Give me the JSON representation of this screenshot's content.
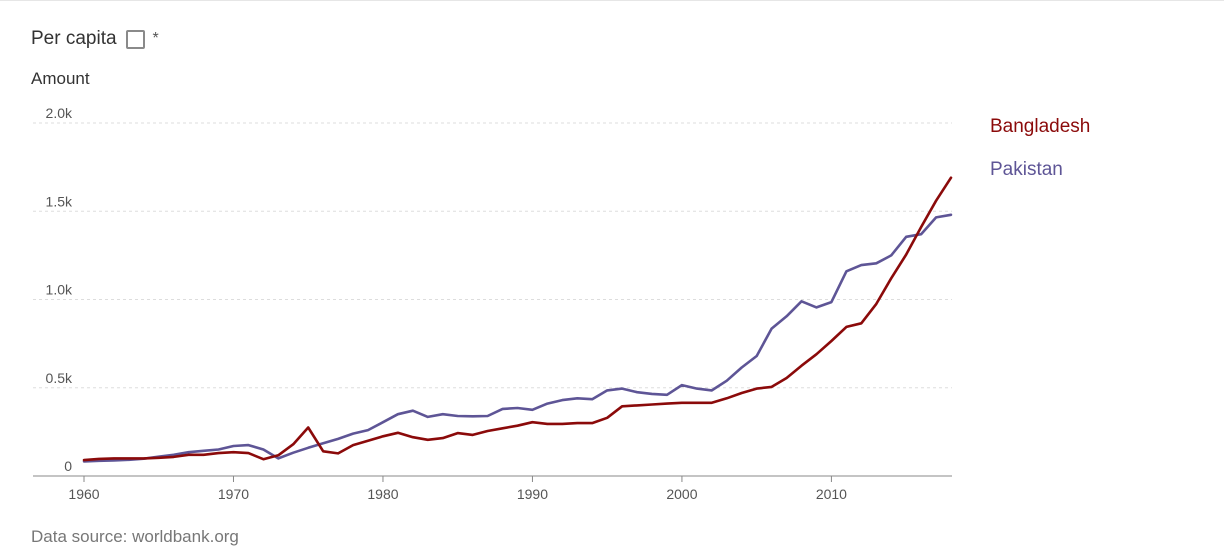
{
  "controls": {
    "per_capita_label": "Per capita",
    "per_capita_checked": false,
    "asterisk": "*"
  },
  "source_label": "Data source: worldbank.org",
  "colors": {
    "bangladesh": "#8b0a0a",
    "pakistan": "#5e5596",
    "grid": "#dddddd",
    "axis": "#888888"
  },
  "chart_data": {
    "type": "line",
    "title": "",
    "ylabel": "Amount",
    "xlabel": "",
    "xlim": [
      1960,
      2018
    ],
    "ylim": [
      0,
      2000
    ],
    "x_ticks": [
      1960,
      1970,
      1980,
      1990,
      2000,
      2010
    ],
    "y_ticks": [
      0,
      500,
      1000,
      1500,
      2000
    ],
    "y_tick_labels": [
      "0",
      "0.5k",
      "1.0k",
      "1.5k",
      "2.0k"
    ],
    "grid": "horizontal dashed",
    "legend_placement": "right",
    "x": [
      1960,
      1961,
      1962,
      1963,
      1964,
      1965,
      1966,
      1967,
      1968,
      1969,
      1970,
      1971,
      1972,
      1973,
      1974,
      1975,
      1976,
      1977,
      1978,
      1979,
      1980,
      1981,
      1982,
      1983,
      1984,
      1985,
      1986,
      1987,
      1988,
      1989,
      1990,
      1991,
      1992,
      1993,
      1994,
      1995,
      1996,
      1997,
      1998,
      1999,
      2000,
      2001,
      2002,
      2003,
      2004,
      2005,
      2006,
      2007,
      2008,
      2009,
      2010,
      2011,
      2012,
      2013,
      2014,
      2015,
      2016,
      2017,
      2018
    ],
    "series": [
      {
        "name": "Bangladesh",
        "color": "#8b0a0a",
        "values": [
          90,
          97,
          100,
          100,
          100,
          103,
          108,
          120,
          120,
          130,
          135,
          130,
          95,
          117,
          180,
          275,
          140,
          128,
          175,
          200,
          225,
          245,
          220,
          205,
          215,
          243,
          233,
          255,
          270,
          285,
          305,
          295,
          295,
          300,
          300,
          330,
          395,
          400,
          405,
          410,
          415,
          415,
          415,
          440,
          470,
          495,
          505,
          555,
          625,
          690,
          765,
          845,
          865,
          975,
          1120,
          1255,
          1410,
          1560,
          1690
        ]
      },
      {
        "name": "Pakistan",
        "color": "#5e5596",
        "values": [
          82,
          86,
          88,
          92,
          98,
          110,
          120,
          135,
          143,
          150,
          170,
          175,
          150,
          100,
          132,
          160,
          185,
          210,
          240,
          260,
          305,
          350,
          370,
          335,
          350,
          340,
          338,
          340,
          380,
          385,
          375,
          410,
          430,
          440,
          435,
          485,
          495,
          475,
          465,
          460,
          515,
          495,
          485,
          540,
          615,
          680,
          835,
          905,
          990,
          955,
          985,
          1160,
          1195,
          1205,
          1250,
          1355,
          1370,
          1465,
          1480
        ]
      }
    ]
  }
}
